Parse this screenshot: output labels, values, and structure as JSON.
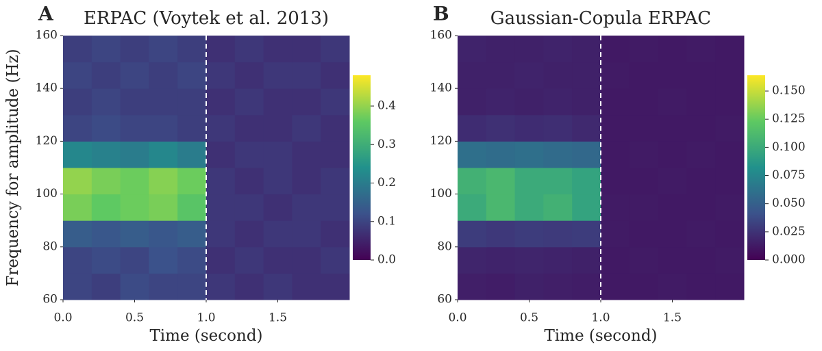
{
  "chart_data": [
    {
      "type": "heatmap",
      "panel": "A",
      "title": "ERPAC (Voytek et al. 2013)",
      "xlabel": "Time (second)",
      "ylabel": "Frequency for amplitude (Hz)",
      "colormap": "viridis",
      "vline": 1.0,
      "xlim": [
        0,
        2
      ],
      "ylim": [
        60,
        160
      ],
      "xticks": [
        {
          "value": 0,
          "label": "0.0"
        },
        0.5,
        {
          "value": 1,
          "label": "1.0"
        },
        1.5
      ],
      "yticks": [
        60,
        80,
        100,
        120,
        140,
        160
      ],
      "xbins": [
        0,
        0.2,
        0.4,
        0.6,
        0.8,
        1.0,
        1.2,
        1.4,
        1.6,
        1.8,
        2.0
      ],
      "ybins": [
        60,
        70,
        80,
        90,
        100,
        110,
        120,
        130,
        140,
        150,
        160
      ],
      "z": [
        [
          0.1,
          0.09,
          0.11,
          0.1,
          0.1,
          0.08,
          0.07,
          0.08,
          0.07,
          0.07
        ],
        [
          0.1,
          0.11,
          0.1,
          0.12,
          0.11,
          0.07,
          0.08,
          0.07,
          0.07,
          0.08
        ],
        [
          0.14,
          0.13,
          0.14,
          0.13,
          0.14,
          0.08,
          0.07,
          0.08,
          0.08,
          0.07
        ],
        [
          0.38,
          0.36,
          0.37,
          0.38,
          0.35,
          0.08,
          0.08,
          0.07,
          0.08,
          0.08
        ],
        [
          0.4,
          0.38,
          0.37,
          0.39,
          0.37,
          0.08,
          0.07,
          0.08,
          0.07,
          0.08
        ],
        [
          0.22,
          0.21,
          0.2,
          0.22,
          0.2,
          0.07,
          0.08,
          0.08,
          0.07,
          0.07
        ],
        [
          0.1,
          0.11,
          0.1,
          0.1,
          0.09,
          0.08,
          0.07,
          0.07,
          0.08,
          0.07
        ],
        [
          0.09,
          0.1,
          0.09,
          0.09,
          0.09,
          0.07,
          0.08,
          0.07,
          0.07,
          0.08
        ],
        [
          0.1,
          0.09,
          0.1,
          0.09,
          0.1,
          0.08,
          0.07,
          0.08,
          0.08,
          0.07
        ],
        [
          0.09,
          0.1,
          0.09,
          0.1,
          0.09,
          0.07,
          0.08,
          0.07,
          0.07,
          0.08
        ]
      ],
      "clim": [
        0,
        0.48
      ],
      "cticks": [
        {
          "value": 0,
          "label": "0.0"
        },
        0.1,
        0.2,
        0.3,
        0.4
      ]
    },
    {
      "type": "heatmap",
      "panel": "B",
      "title": "Gaussian-Copula ERPAC",
      "xlabel": "Time (second)",
      "colormap": "viridis",
      "vline": 1.0,
      "xlim": [
        0,
        2
      ],
      "ylim": [
        60,
        160
      ],
      "xticks": [
        {
          "value": 0,
          "label": "0.0"
        },
        0.5,
        {
          "value": 1,
          "label": "1.0"
        },
        1.5
      ],
      "yticks": [
        60,
        80,
        100,
        120,
        140,
        160
      ],
      "xbins": [
        0,
        0.2,
        0.4,
        0.6,
        0.8,
        1.0,
        1.2,
        1.4,
        1.6,
        1.8,
        2.0
      ],
      "ybins": [
        60,
        70,
        80,
        90,
        100,
        110,
        120,
        130,
        140,
        150,
        160
      ],
      "z": [
        [
          0.015,
          0.014,
          0.016,
          0.015,
          0.014,
          0.012,
          0.012,
          0.013,
          0.012,
          0.012
        ],
        [
          0.018,
          0.017,
          0.018,
          0.017,
          0.016,
          0.012,
          0.013,
          0.012,
          0.012,
          0.013
        ],
        [
          0.03,
          0.028,
          0.03,
          0.029,
          0.03,
          0.013,
          0.012,
          0.012,
          0.013,
          0.012
        ],
        [
          0.1,
          0.11,
          0.1,
          0.105,
          0.095,
          0.013,
          0.013,
          0.012,
          0.012,
          0.013
        ],
        [
          0.105,
          0.11,
          0.1,
          0.1,
          0.095,
          0.012,
          0.012,
          0.013,
          0.012,
          0.012
        ],
        [
          0.06,
          0.058,
          0.06,
          0.057,
          0.055,
          0.012,
          0.013,
          0.012,
          0.013,
          0.012
        ],
        [
          0.022,
          0.024,
          0.022,
          0.023,
          0.02,
          0.012,
          0.012,
          0.012,
          0.012,
          0.013
        ],
        [
          0.016,
          0.017,
          0.016,
          0.017,
          0.016,
          0.012,
          0.012,
          0.013,
          0.012,
          0.012
        ],
        [
          0.016,
          0.016,
          0.017,
          0.016,
          0.016,
          0.013,
          0.012,
          0.012,
          0.012,
          0.012
        ],
        [
          0.017,
          0.016,
          0.016,
          0.017,
          0.016,
          0.012,
          0.013,
          0.012,
          0.013,
          0.012
        ]
      ],
      "clim": [
        0,
        0.164
      ],
      "cticks": [
        {
          "value": 0,
          "label": "0.000"
        },
        {
          "value": 0.025,
          "label": "0.025"
        },
        {
          "value": 0.05,
          "label": "0.050"
        },
        {
          "value": 0.075,
          "label": "0.075"
        },
        {
          "value": 0.1,
          "label": "0.100"
        },
        {
          "value": 0.125,
          "label": "0.125"
        },
        {
          "value": 0.15,
          "label": "0.150"
        }
      ]
    }
  ]
}
